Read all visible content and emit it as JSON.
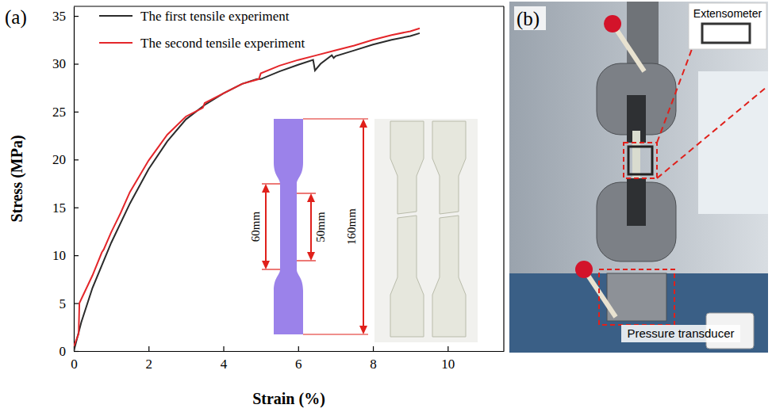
{
  "chart_data": {
    "type": "line",
    "panel": "(a)",
    "x_label": "Strain (%)",
    "y_label": "Stress (MPa)",
    "xlim": [
      0,
      11.5
    ],
    "xticks": [
      0,
      2,
      4,
      6,
      8,
      10
    ],
    "ylim": [
      0,
      36
    ],
    "yticks": [
      0,
      5,
      10,
      15,
      20,
      25,
      30,
      35
    ],
    "grid": false,
    "legend": "upper left",
    "series": [
      {
        "name": "The first tensile experiment",
        "color": "#2b2b2b",
        "line_style": "solid",
        "x": [
          0,
          0.2,
          0.5,
          1.0,
          1.5,
          2.0,
          2.5,
          3.0,
          3.5,
          4.0,
          4.5,
          4.9,
          5.0,
          5.5,
          6.0,
          6.4,
          6.45,
          6.6,
          6.9,
          6.95,
          7.0,
          7.5,
          8.0,
          8.5,
          9.0,
          9.25
        ],
        "values": [
          0,
          3.0,
          6.6,
          11.3,
          15.4,
          19.0,
          21.9,
          24.2,
          25.7,
          26.9,
          27.9,
          28.4,
          28.4,
          29.2,
          29.9,
          30.4,
          29.3,
          30.0,
          30.9,
          30.6,
          30.8,
          31.4,
          32.0,
          32.5,
          32.9,
          33.2
        ]
      },
      {
        "name": "The second tensile experiment",
        "color": "#e4262a",
        "line_style": "solid",
        "x": [
          0,
          0.13,
          0.15,
          0.5,
          0.75,
          0.8,
          1.0,
          1.2,
          1.25,
          1.5,
          2.0,
          2.5,
          3.0,
          3.45,
          3.5,
          4.0,
          4.5,
          4.95,
          5.0,
          5.5,
          6.0,
          6.5,
          7.0,
          7.5,
          8.0,
          8.5,
          9.0,
          9.25
        ],
        "values": [
          0.5,
          1.8,
          5.0,
          7.9,
          10.3,
          10.6,
          12.4,
          14.0,
          14.4,
          16.6,
          19.9,
          22.6,
          24.5,
          25.4,
          25.9,
          26.9,
          27.9,
          28.4,
          29.0,
          29.8,
          30.4,
          30.9,
          31.4,
          31.9,
          32.5,
          33.0,
          33.4,
          33.7
        ]
      }
    ]
  },
  "specimen_inset": {
    "gauge_length": "60mm",
    "extensometer_span": "50mm",
    "total_length": "160mm"
  },
  "photo_panel": {
    "label": "(b)",
    "callouts": [
      "Extensometer",
      "Pressure transducer"
    ]
  }
}
